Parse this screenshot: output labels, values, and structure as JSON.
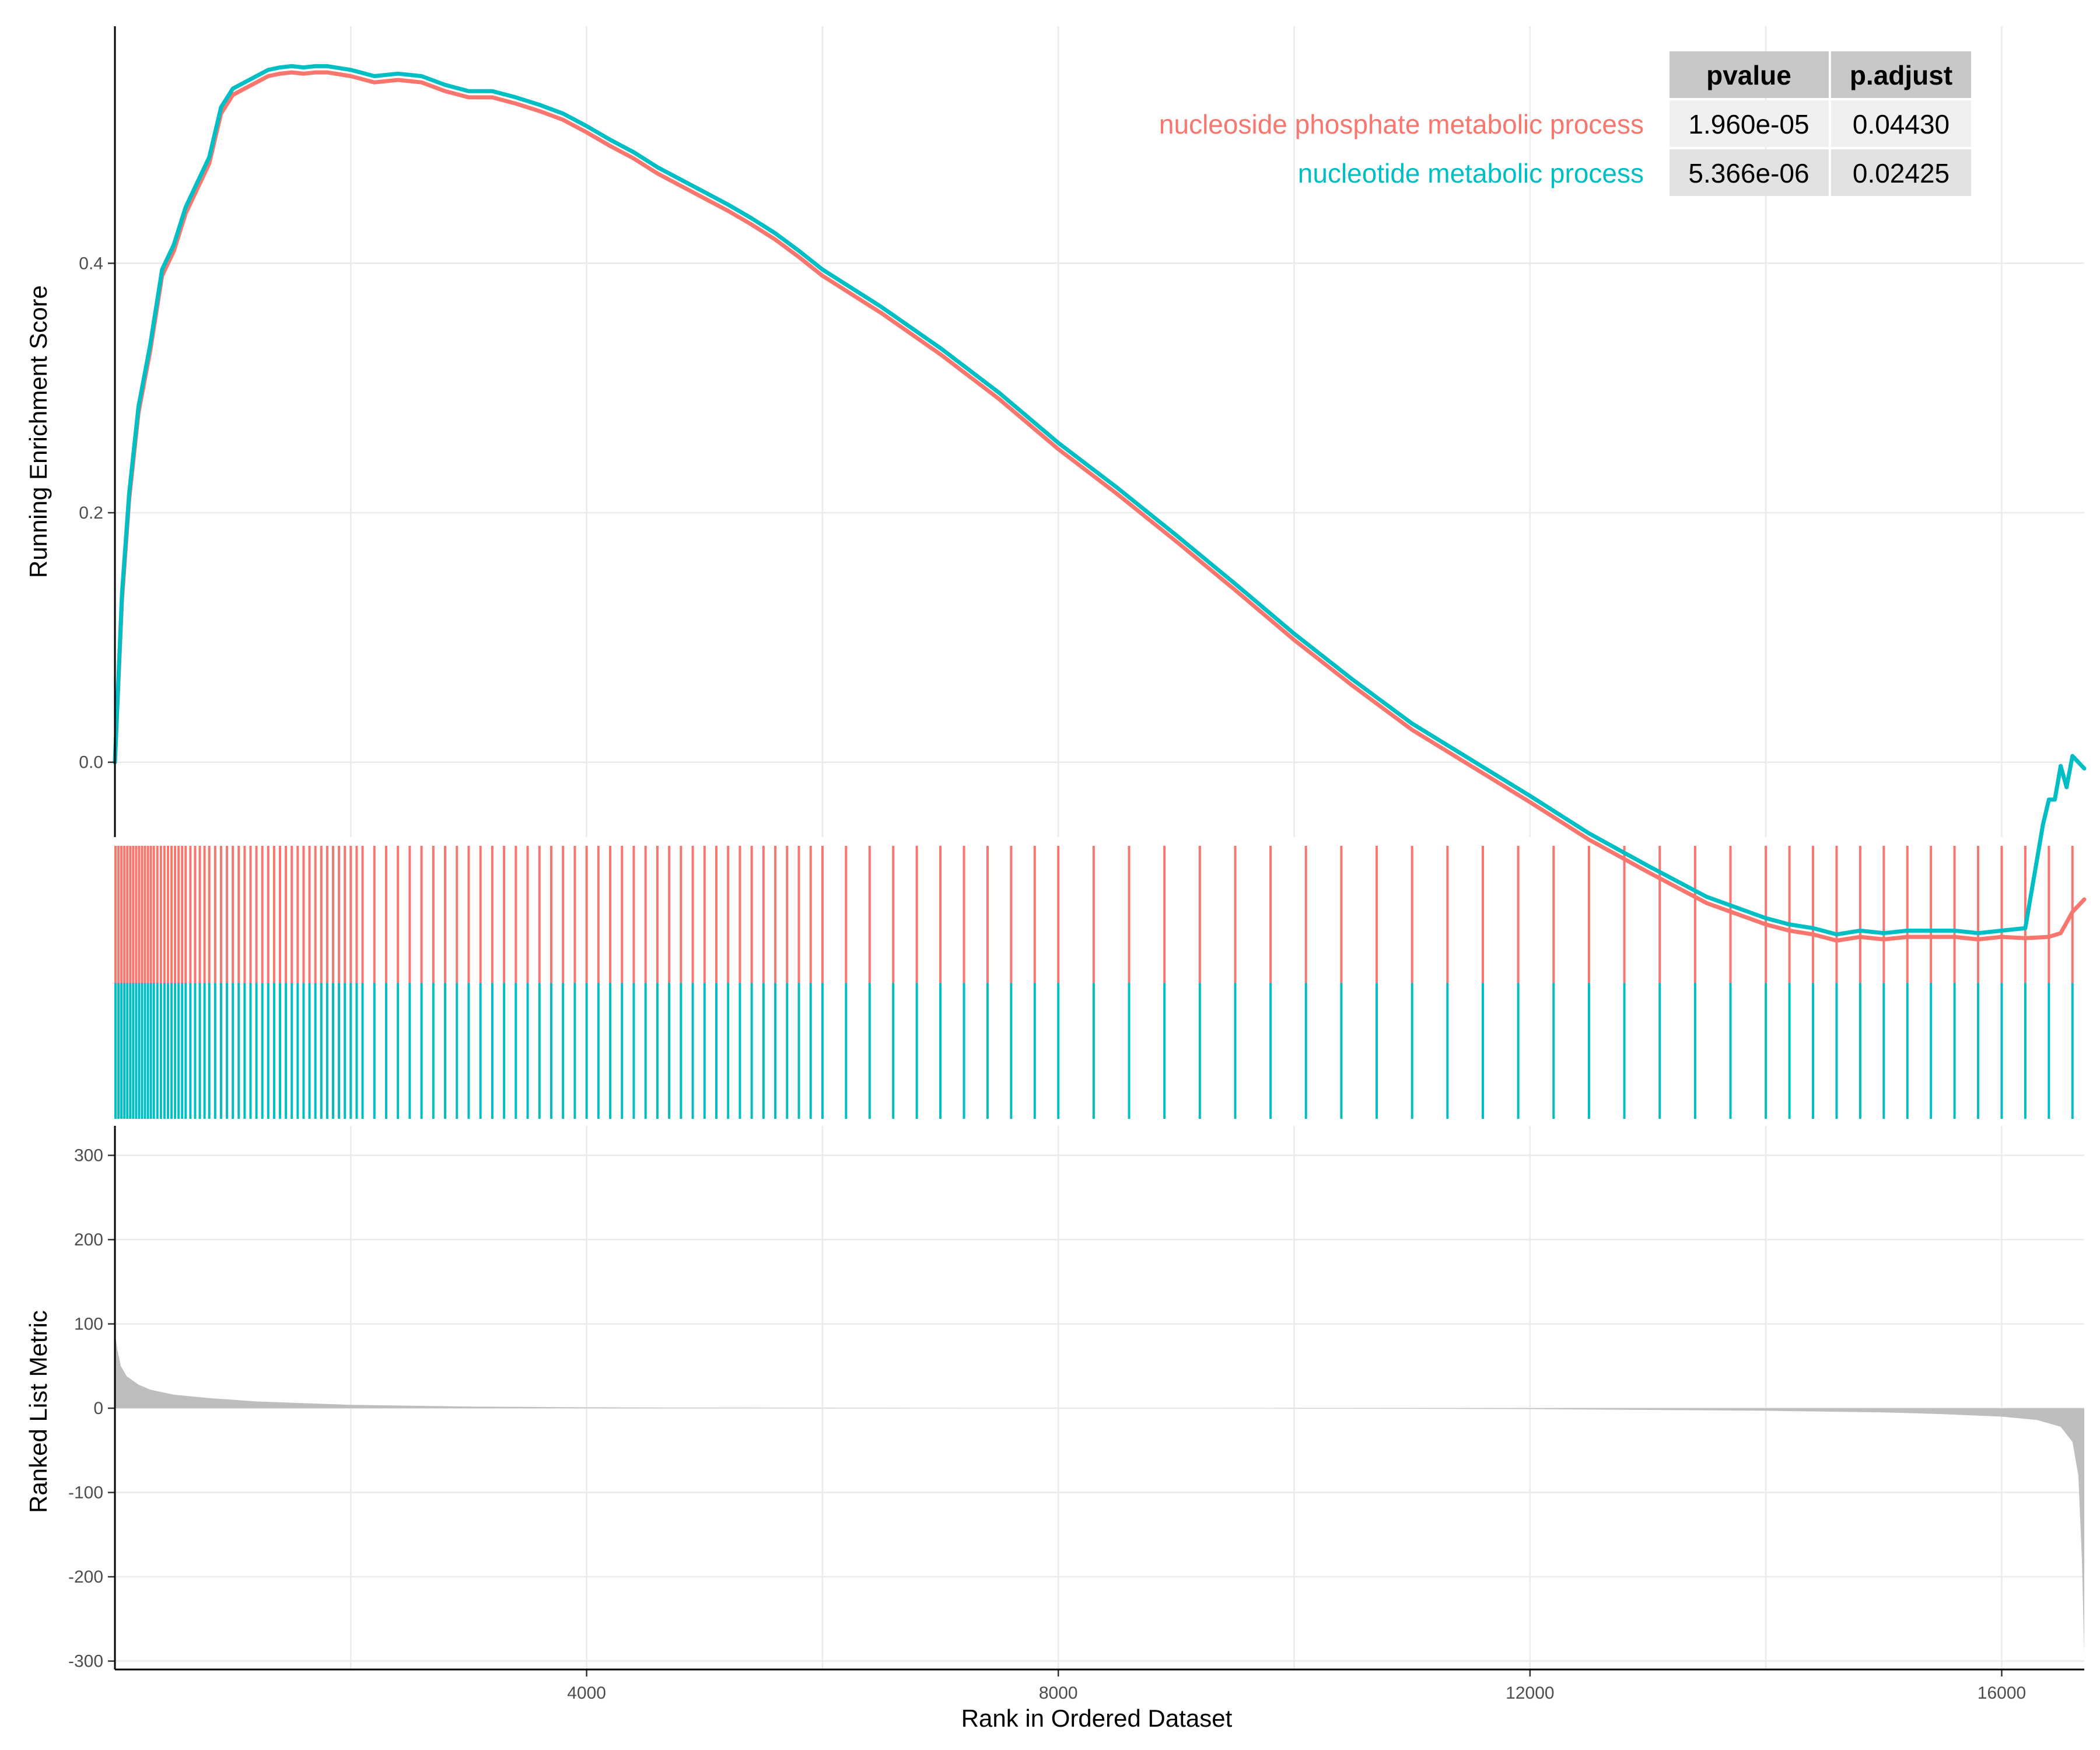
{
  "chart_data": {
    "type": "line",
    "title": "",
    "xlabel": "Rank in Ordered Dataset",
    "xlim": [
      0,
      16700
    ],
    "x_ticks": [
      "4000",
      "8000",
      "12000",
      "16000"
    ],
    "es_panel": {
      "ylabel": "Running Enrichment Score",
      "ylim": [
        -0.06,
        0.59
      ],
      "y_ticks": [
        "0.0",
        "0.2",
        "0.4"
      ],
      "grid": true,
      "series": [
        {
          "name": "nucleoside phosphate metabolic process",
          "color": "#F8766D",
          "x": [
            0,
            60,
            120,
            200,
            300,
            400,
            500,
            600,
            700,
            800,
            900,
            1000,
            1100,
            1200,
            1300,
            1400,
            1500,
            1600,
            1700,
            1800,
            2000,
            2200,
            2400,
            2600,
            2800,
            3000,
            3200,
            3400,
            3600,
            3800,
            4000,
            4200,
            4400,
            4600,
            4800,
            5000,
            5200,
            5400,
            5600,
            5800,
            6000,
            6500,
            7000,
            7500,
            8000,
            8500,
            9000,
            9500,
            10000,
            10500,
            11000,
            11500,
            12000,
            12500,
            13000,
            13500,
            14000,
            14200,
            14400,
            14600,
            14800,
            15000,
            15200,
            15400,
            15600,
            15800,
            16000,
            16200,
            16400,
            16500,
            16600,
            16700
          ],
          "y": [
            0.0,
            0.13,
            0.21,
            0.28,
            0.33,
            0.39,
            0.41,
            0.44,
            0.46,
            0.48,
            0.52,
            0.535,
            0.54,
            0.545,
            0.55,
            0.552,
            0.553,
            0.552,
            0.553,
            0.553,
            0.55,
            0.545,
            0.547,
            0.545,
            0.538,
            0.533,
            0.533,
            0.528,
            0.522,
            0.515,
            0.505,
            0.494,
            0.484,
            0.472,
            0.462,
            0.452,
            0.442,
            0.431,
            0.419,
            0.405,
            0.39,
            0.36,
            0.327,
            0.291,
            0.251,
            0.215,
            0.177,
            0.138,
            0.098,
            0.061,
            0.026,
            -0.003,
            -0.032,
            -0.062,
            -0.088,
            -0.113,
            -0.13,
            -0.135,
            -0.138,
            -0.143,
            -0.14,
            -0.142,
            -0.14,
            -0.14,
            -0.14,
            -0.142,
            -0.14,
            -0.141,
            -0.14,
            -0.137,
            -0.12,
            -0.11
          ]
        },
        {
          "name": "nucleotide metabolic process",
          "color": "#00BFC4",
          "x": [
            0,
            60,
            120,
            200,
            300,
            400,
            500,
            600,
            700,
            800,
            900,
            1000,
            1100,
            1200,
            1300,
            1400,
            1500,
            1600,
            1700,
            1800,
            2000,
            2200,
            2400,
            2600,
            2800,
            3000,
            3200,
            3400,
            3600,
            3800,
            4000,
            4200,
            4400,
            4600,
            4800,
            5000,
            5200,
            5400,
            5600,
            5800,
            6000,
            6500,
            7000,
            7500,
            8000,
            8500,
            9000,
            9500,
            10000,
            10500,
            11000,
            11500,
            12000,
            12500,
            13000,
            13500,
            14000,
            14200,
            14400,
            14600,
            14800,
            15000,
            15200,
            15400,
            15600,
            15800,
            16000,
            16200,
            16350,
            16400,
            16450,
            16500,
            16550,
            16600,
            16700
          ],
          "y": [
            0.0,
            0.135,
            0.215,
            0.285,
            0.335,
            0.395,
            0.415,
            0.445,
            0.465,
            0.485,
            0.525,
            0.54,
            0.545,
            0.55,
            0.555,
            0.557,
            0.558,
            0.557,
            0.558,
            0.558,
            0.555,
            0.55,
            0.552,
            0.55,
            0.543,
            0.538,
            0.538,
            0.533,
            0.527,
            0.52,
            0.51,
            0.499,
            0.489,
            0.477,
            0.467,
            0.457,
            0.447,
            0.436,
            0.424,
            0.41,
            0.395,
            0.365,
            0.332,
            0.296,
            0.256,
            0.22,
            0.182,
            0.143,
            0.103,
            0.066,
            0.031,
            0.002,
            -0.027,
            -0.057,
            -0.083,
            -0.108,
            -0.125,
            -0.13,
            -0.133,
            -0.138,
            -0.135,
            -0.137,
            -0.135,
            -0.135,
            -0.135,
            -0.137,
            -0.135,
            -0.133,
            -0.05,
            -0.03,
            -0.03,
            -0.003,
            -0.02,
            0.005,
            -0.005
          ]
        }
      ]
    },
    "hits_panel": {
      "colors": [
        "#F8766D",
        "#00BFC4"
      ],
      "positions": [
        5,
        30,
        55,
        80,
        105,
        130,
        155,
        180,
        205,
        230,
        255,
        280,
        305,
        330,
        360,
        390,
        420,
        450,
        480,
        510,
        540,
        570,
        600,
        640,
        680,
        720,
        760,
        800,
        850,
        900,
        950,
        1000,
        1050,
        1100,
        1150,
        1200,
        1250,
        1300,
        1350,
        1400,
        1450,
        1500,
        1550,
        1600,
        1650,
        1700,
        1750,
        1800,
        1850,
        1900,
        1950,
        2000,
        2050,
        2100,
        2200,
        2300,
        2400,
        2500,
        2600,
        2700,
        2800,
        2900,
        3000,
        3100,
        3200,
        3300,
        3400,
        3500,
        3600,
        3700,
        3800,
        3900,
        4000,
        4100,
        4200,
        4300,
        4400,
        4500,
        4600,
        4700,
        4800,
        4900,
        5000,
        5100,
        5200,
        5300,
        5400,
        5500,
        5600,
        5700,
        5800,
        5900,
        6000,
        6200,
        6400,
        6600,
        6800,
        7000,
        7200,
        7400,
        7600,
        7800,
        8000,
        8300,
        8600,
        8900,
        9200,
        9500,
        9800,
        10100,
        10400,
        10700,
        11000,
        11300,
        11600,
        11900,
        12200,
        12500,
        12800,
        13100,
        13400,
        13700,
        14000,
        14200,
        14400,
        14600,
        14800,
        15000,
        15200,
        15400,
        15600,
        15800,
        16000,
        16200,
        16400,
        16600
      ]
    },
    "rank_panel": {
      "ylabel": "Ranked List Metric",
      "ylim": [
        -310,
        335
      ],
      "y_ticks": [
        "300",
        "200",
        "100",
        "0",
        "-100",
        "-200",
        "-300"
      ],
      "fill_color": "#bebebe",
      "x": [
        0,
        20,
        50,
        100,
        200,
        300,
        500,
        800,
        1200,
        2000,
        3000,
        4000,
        5000,
        6000,
        7000,
        8000,
        9000,
        10000,
        11000,
        12000,
        13000,
        14000,
        15000,
        15500,
        16000,
        16300,
        16500,
        16600,
        16650,
        16680,
        16700
      ],
      "y": [
        90,
        70,
        50,
        38,
        28,
        22,
        16,
        12,
        8,
        4,
        2,
        1,
        0.5,
        0.3,
        0.1,
        0,
        0,
        -0.3,
        -0.6,
        -1,
        -2,
        -3,
        -5,
        -7,
        -10,
        -14,
        -22,
        -40,
        -80,
        -180,
        -290
      ]
    },
    "legend_table": {
      "headers": [
        "pvalue",
        "p.adjust"
      ],
      "rows": [
        {
          "label": "nucleoside phosphate metabolic process",
          "color": "#F8766D",
          "pvalue": "1.960e-05",
          "padjust": "0.04430"
        },
        {
          "label": "nucleotide metabolic process",
          "color": "#00BFC4",
          "pvalue": "5.366e-06",
          "padjust": "0.02425"
        }
      ]
    }
  }
}
